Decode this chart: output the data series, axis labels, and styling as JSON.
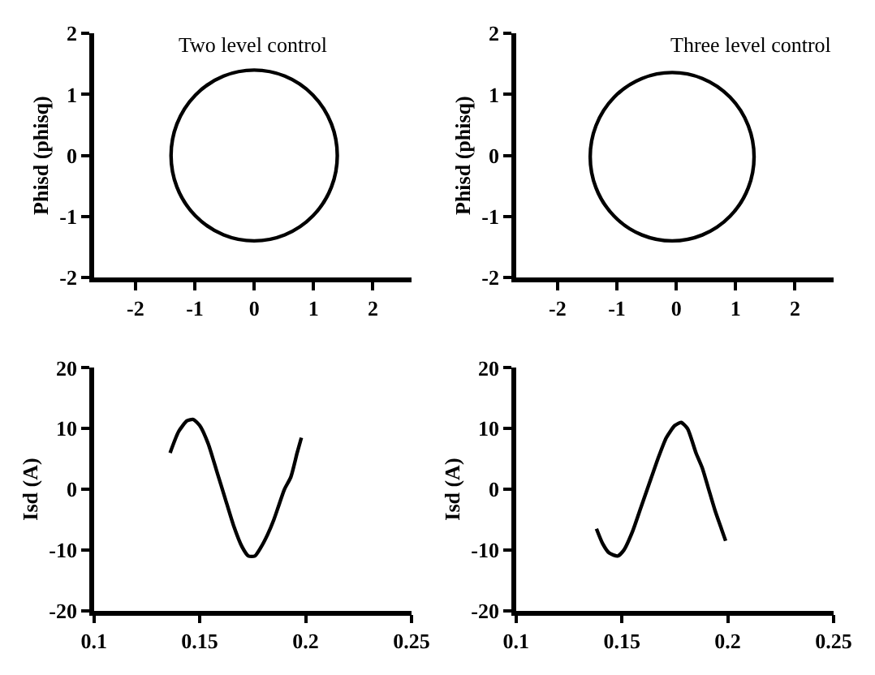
{
  "chart_data": [
    {
      "type": "line",
      "title": "Two level control",
      "ylabel": "Phisd (phisq)",
      "xlim": [
        -2.7,
        2.65
      ],
      "xticks": [
        -2,
        -1,
        0,
        1,
        2
      ],
      "ylim": [
        -2,
        2
      ],
      "yticks": [
        -2,
        -1,
        0,
        1,
        2
      ],
      "grid": false
    },
    {
      "type": "line",
      "title": "Three level control",
      "ylabel": "Phisd (phisq)",
      "xlim": [
        -2.7,
        2.65
      ],
      "xticks": [
        -2,
        -1,
        0,
        1,
        2
      ],
      "ylim": [
        -2,
        2
      ],
      "yticks": [
        -2,
        -1,
        0,
        1,
        2
      ],
      "grid": false
    },
    {
      "type": "line",
      "ylabel": "Isd (A)",
      "xlim": [
        0.1,
        0.25
      ],
      "xticks": [
        0.1,
        0.15,
        0.2,
        0.25
      ],
      "ylim": [
        -20,
        20
      ],
      "yticks": [
        -20,
        -10,
        0,
        10,
        20
      ],
      "grid": false,
      "marker": "none",
      "line_style": "solid",
      "series": [
        {
          "color": "#000000",
          "x": [
            0.136,
            0.14,
            0.144,
            0.147,
            0.15,
            0.154,
            0.158,
            0.162,
            0.166,
            0.17,
            0.173,
            0.176,
            0.179,
            0.182,
            0.185,
            0.187,
            0.19,
            0.193,
            0.196,
            0.198
          ],
          "values": [
            6,
            9.5,
            11.3,
            11.5,
            10.5,
            7.5,
            3,
            -1.5,
            -6,
            -9.5,
            -11,
            -11,
            -9.5,
            -7.5,
            -5,
            -3,
            0,
            2,
            6,
            8.5
          ]
        }
      ]
    },
    {
      "type": "line",
      "ylabel": "Isd (A)",
      "xlim": [
        0.1,
        0.25
      ],
      "xticks": [
        0.1,
        0.15,
        0.2,
        0.25
      ],
      "ylim": [
        -20,
        20
      ],
      "yticks": [
        -20,
        -10,
        0,
        10,
        20
      ],
      "grid": false,
      "marker": "none",
      "line_style": "solid",
      "series": [
        {
          "color": "#000000",
          "x": [
            0.138,
            0.141,
            0.144,
            0.148,
            0.151,
            0.155,
            0.159,
            0.163,
            0.167,
            0.171,
            0.175,
            0.178,
            0.181,
            0.185,
            0.188,
            0.191,
            0.194,
            0.197,
            0.199
          ],
          "values": [
            -6.5,
            -9,
            -10.5,
            -11,
            -10,
            -7,
            -3,
            1,
            5,
            8.5,
            10.5,
            11,
            10,
            6,
            3.5,
            0,
            -3.5,
            -6.5,
            -8.5
          ]
        }
      ]
    }
  ]
}
